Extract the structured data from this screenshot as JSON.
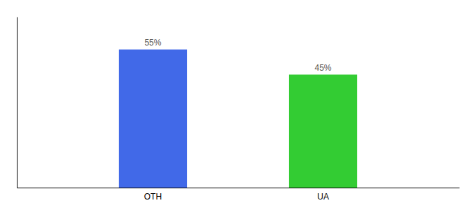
{
  "chart_data": {
    "type": "bar",
    "categories": [
      "OTH",
      "UA"
    ],
    "values": [
      55,
      45
    ],
    "value_labels": [
      "55%",
      "45%"
    ],
    "colors": [
      "#4169e8",
      "#33cc33"
    ],
    "ylim": [
      0,
      68
    ],
    "data_labels": true,
    "tick_labels": "x"
  }
}
